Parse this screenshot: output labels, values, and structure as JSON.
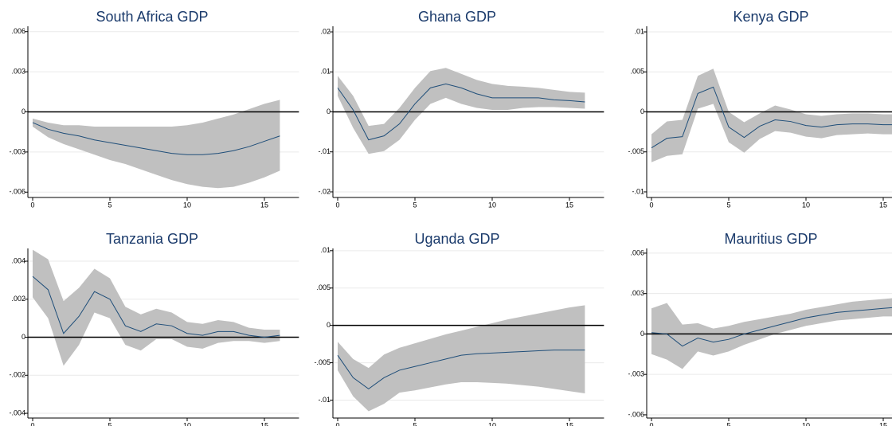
{
  "chart_data": [
    {
      "type": "line",
      "title": "South Africa GDP",
      "x": [
        0,
        1,
        2,
        3,
        4,
        5,
        6,
        7,
        8,
        9,
        10,
        11,
        12,
        13,
        14,
        15,
        16
      ],
      "values": [
        -0.0008,
        -0.0013,
        -0.0016,
        -0.0018,
        -0.0021,
        -0.0023,
        -0.0025,
        -0.0027,
        -0.0029,
        -0.0031,
        -0.0032,
        -0.0032,
        -0.0031,
        -0.0029,
        -0.0026,
        -0.0022,
        -0.0018
      ],
      "color": "#1f4e79",
      "band": {
        "color": "#c0c0c0",
        "lower": [
          -0.0011,
          -0.0019,
          -0.0024,
          -0.0028,
          -0.0032,
          -0.0036,
          -0.0039,
          -0.0043,
          -0.0047,
          -0.0051,
          -0.0054,
          -0.0056,
          -0.0057,
          -0.0056,
          -0.0053,
          -0.0049,
          -0.0044
        ],
        "upper": [
          -0.0005,
          -0.0008,
          -0.001,
          -0.001,
          -0.0011,
          -0.0011,
          -0.0011,
          -0.0011,
          -0.0011,
          -0.0011,
          -0.001,
          -0.0008,
          -0.0005,
          -0.0002,
          0.0002,
          0.0006,
          0.0009
        ]
      },
      "hline": 0,
      "xlim": [
        0,
        16
      ],
      "xticks": [
        0,
        5,
        10,
        15
      ],
      "ylim": [
        -0.0064,
        0.0064
      ],
      "yticks": [
        {
          "value": -0.006,
          "label": "-.006"
        },
        {
          "value": -0.003,
          "label": "-.003"
        },
        0,
        {
          "value": 0.003,
          "label": ".003"
        },
        {
          "value": 0.006,
          "label": ".006"
        }
      ],
      "grid": true
    },
    {
      "type": "line",
      "title": "Ghana GDP",
      "x": [
        0,
        1,
        2,
        3,
        4,
        5,
        6,
        7,
        8,
        9,
        10,
        11,
        12,
        13,
        14,
        15,
        16
      ],
      "values": [
        0.006,
        0.0005,
        -0.007,
        -0.006,
        -0.003,
        0.002,
        0.006,
        0.007,
        0.006,
        0.0045,
        0.0035,
        0.0035,
        0.0035,
        0.0035,
        0.003,
        0.0028,
        0.0025
      ],
      "color": "#1f4e79",
      "band": {
        "color": "#c0c0c0",
        "lower": [
          0.004,
          -0.004,
          -0.0105,
          -0.0098,
          -0.007,
          -0.002,
          0.002,
          0.0035,
          0.002,
          0.001,
          0.0005,
          0.0005,
          0.001,
          0.0012,
          0.0012,
          0.001,
          0.0008
        ],
        "upper": [
          0.009,
          0.004,
          -0.0035,
          -0.003,
          0.001,
          0.006,
          0.0102,
          0.011,
          0.0095,
          0.008,
          0.007,
          0.0065,
          0.0063,
          0.006,
          0.0055,
          0.005,
          0.0048
        ]
      },
      "hline": 0,
      "xlim": [
        0,
        16
      ],
      "xticks": [
        0,
        5,
        10,
        15
      ],
      "ylim": [
        -0.0214,
        0.0214
      ],
      "yticks": [
        {
          "value": -0.02,
          "label": "-.02"
        },
        {
          "value": -0.01,
          "label": "-.01"
        },
        0,
        {
          "value": 0.01,
          "label": ".01"
        },
        {
          "value": 0.02,
          "label": ".02"
        }
      ],
      "grid": true
    },
    {
      "type": "line",
      "title": "Kenya GDP",
      "x": [
        0,
        1,
        2,
        3,
        4,
        5,
        6,
        7,
        8,
        9,
        10,
        11,
        12,
        13,
        14,
        15,
        16
      ],
      "values": [
        -0.0045,
        -0.0033,
        -0.0031,
        0.0023,
        0.0031,
        -0.0019,
        -0.0032,
        -0.0018,
        -0.001,
        -0.0012,
        -0.0017,
        -0.0019,
        -0.0016,
        -0.0015,
        -0.0015,
        -0.0016,
        -0.0016
      ],
      "color": "#1f4e79",
      "band": {
        "color": "#c0c0c0",
        "lower": [
          -0.0063,
          -0.0055,
          -0.0053,
          0.0004,
          0.001,
          -0.0038,
          -0.0051,
          -0.0034,
          -0.0024,
          -0.0026,
          -0.0031,
          -0.0033,
          -0.0029,
          -0.0028,
          -0.0027,
          -0.0028,
          -0.0028
        ],
        "upper": [
          -0.0028,
          -0.0012,
          -0.001,
          0.0045,
          0.0054,
          0.0,
          -0.0013,
          -0.0002,
          0.0008,
          0.0003,
          -0.0003,
          -0.0005,
          -0.0003,
          -0.0002,
          -0.0002,
          -0.0003,
          -0.0003
        ]
      },
      "hline": 0,
      "xlim": [
        0,
        16
      ],
      "xticks": [
        0,
        5,
        10,
        15
      ],
      "ylim": [
        -0.0107,
        0.0107
      ],
      "yticks": [
        {
          "value": -0.01,
          "label": "-.01"
        },
        {
          "value": -0.005,
          "label": "-.005"
        },
        0,
        {
          "value": 0.005,
          "label": ".005"
        },
        {
          "value": 0.01,
          "label": ".01"
        }
      ],
      "grid": true
    },
    {
      "type": "line",
      "title": "Tanzania GDP",
      "x": [
        0,
        1,
        2,
        3,
        4,
        5,
        6,
        7,
        8,
        9,
        10,
        11,
        12,
        13,
        14,
        15,
        16
      ],
      "values": [
        0.0032,
        0.0025,
        0.0002,
        0.0011,
        0.0024,
        0.002,
        0.0006,
        0.0003,
        0.0007,
        0.0006,
        0.0002,
        0.0001,
        0.0003,
        0.0003,
        0.0001,
        0.0,
        0.0001
      ],
      "color": "#1f4e79",
      "band": {
        "color": "#c0c0c0",
        "lower": [
          0.0021,
          0.001,
          -0.0015,
          -0.0004,
          0.0013,
          0.001,
          -0.0004,
          -0.0007,
          -0.0001,
          -0.0001,
          -0.0005,
          -0.0006,
          -0.0003,
          -0.0002,
          -0.0002,
          -0.0003,
          -0.0002
        ],
        "upper": [
          0.0046,
          0.0041,
          0.0019,
          0.0026,
          0.0036,
          0.0031,
          0.0016,
          0.0012,
          0.0015,
          0.0013,
          0.0008,
          0.0007,
          0.0009,
          0.0008,
          0.0005,
          0.0004,
          0.0004
        ]
      },
      "hline": 0,
      "xlim": [
        0,
        16
      ],
      "xticks": [
        0,
        5,
        10,
        15
      ],
      "ylim": [
        -0.00425,
        0.00467
      ],
      "yticks": [
        {
          "value": -0.004,
          "label": "-.004"
        },
        {
          "value": -0.002,
          "label": "-.002"
        },
        0,
        {
          "value": 0.002,
          "label": ".002"
        },
        {
          "value": 0.004,
          "label": ".004"
        }
      ],
      "grid": true
    },
    {
      "type": "line",
      "title": "Uganda GDP",
      "x": [
        0,
        1,
        2,
        3,
        4,
        5,
        6,
        7,
        8,
        9,
        10,
        11,
        12,
        13,
        14,
        15,
        16
      ],
      "values": [
        -0.004,
        -0.007,
        -0.0085,
        -0.007,
        -0.006,
        -0.0055,
        -0.005,
        -0.0045,
        -0.004,
        -0.0038,
        -0.0037,
        -0.0036,
        -0.0035,
        -0.0034,
        -0.0033,
        -0.0033,
        -0.0033
      ],
      "color": "#1f4e79",
      "band": {
        "color": "#c0c0c0",
        "lower": [
          -0.006,
          -0.0095,
          -0.0115,
          -0.0105,
          -0.009,
          -0.0087,
          -0.0083,
          -0.0079,
          -0.0076,
          -0.0076,
          -0.0077,
          -0.0078,
          -0.008,
          -0.0082,
          -0.0085,
          -0.0088,
          -0.0091
        ],
        "upper": [
          -0.0022,
          -0.0045,
          -0.0057,
          -0.0039,
          -0.003,
          -0.0024,
          -0.0018,
          -0.0012,
          -0.0007,
          -0.0002,
          0.0003,
          0.0008,
          0.0012,
          0.0016,
          0.002,
          0.0024,
          0.0027
        ]
      },
      "hline": 0,
      "xlim": [
        0,
        16
      ],
      "xticks": [
        0,
        5,
        10,
        15
      ],
      "ylim": [
        -0.0124,
        0.0103
      ],
      "yticks": [
        {
          "value": -0.01,
          "label": "-.01"
        },
        {
          "value": -0.005,
          "label": "-.005"
        },
        0,
        {
          "value": 0.005,
          "label": ".005"
        },
        {
          "value": 0.01,
          "label": ".01"
        }
      ],
      "grid": true
    },
    {
      "type": "line",
      "title": "Mauritius GDP",
      "x": [
        0,
        1,
        2,
        3,
        4,
        5,
        6,
        7,
        8,
        9,
        10,
        11,
        12,
        13,
        14,
        15,
        16
      ],
      "values": [
        0.0001,
        0.0,
        -0.0009,
        -0.0003,
        -0.0006,
        -0.0004,
        0.0,
        0.0003,
        0.0006,
        0.0009,
        0.0012,
        0.0014,
        0.0016,
        0.0017,
        0.0018,
        0.0019,
        0.002
      ],
      "color": "#1f4e79",
      "band": {
        "color": "#c0c0c0",
        "lower": [
          -0.0015,
          -0.0019,
          -0.0026,
          -0.0013,
          -0.0016,
          -0.0013,
          -0.0008,
          -0.0004,
          0.0,
          0.0003,
          0.0006,
          0.0008,
          0.001,
          0.0011,
          0.0012,
          0.0013,
          0.0013
        ],
        "upper": [
          0.0019,
          0.0023,
          0.0007,
          0.0008,
          0.0004,
          0.0006,
          0.0009,
          0.0011,
          0.0013,
          0.0015,
          0.0018,
          0.002,
          0.0022,
          0.0024,
          0.0025,
          0.0026,
          0.0027
        ]
      },
      "hline": 0,
      "xlim": [
        0,
        16
      ],
      "xticks": [
        0,
        5,
        10,
        15
      ],
      "ylim": [
        -0.00624,
        0.00635
      ],
      "yticks": [
        {
          "value": -0.006,
          "label": "-.006"
        },
        {
          "value": -0.003,
          "label": "-.003"
        },
        0,
        {
          "value": 0.003,
          "label": ".003"
        },
        {
          "value": 0.006,
          "label": ".006"
        }
      ],
      "grid": true
    }
  ]
}
